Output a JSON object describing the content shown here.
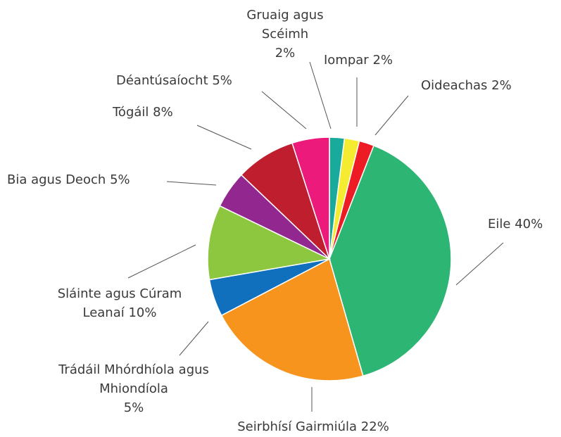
{
  "chart_data": {
    "type": "pie",
    "categories": [
      "Gruaig agus Scéimh",
      "Iompar",
      "Oideachas",
      "Eile",
      "Seirbhísí Gairmiúla",
      "Trádáil Mhórdhíola agus Mhiondíola",
      "Sláinte agus Cúram Leanaí",
      "Bia agus Deoch",
      "Tógáil",
      "Déantúsaíocht"
    ],
    "values": [
      2,
      2,
      2,
      40,
      22,
      5,
      10,
      5,
      8,
      5
    ],
    "value_labels": [
      "2%",
      "2%",
      "2%",
      "40%",
      "22%",
      "5%",
      "10%",
      "5%",
      "8%",
      "5%"
    ],
    "colors": [
      "#1aaa9b",
      "#f5ec32",
      "#ed1c24",
      "#2db673",
      "#f7941e",
      "#1070bd",
      "#8dc63f",
      "#92278f",
      "#be1e2d",
      "#ec1b7b"
    ]
  }
}
